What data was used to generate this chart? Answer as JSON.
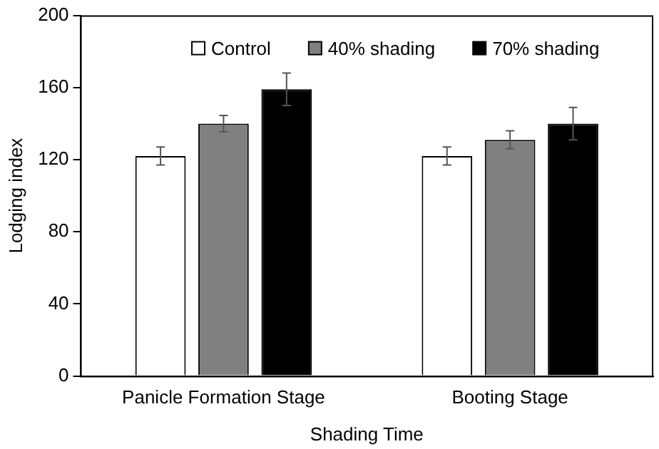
{
  "chart_data": {
    "type": "bar",
    "xlabel": "Shading Time",
    "ylabel": "Lodging index",
    "categories": [
      "Panicle Formation Stage",
      "Booting Stage"
    ],
    "series": [
      {
        "name": "Control",
        "color": "#ffffff",
        "values": [
          122,
          122
        ],
        "errors": [
          5,
          5
        ]
      },
      {
        "name": "40% shading",
        "color": "#808080",
        "values": [
          140,
          131
        ],
        "errors": [
          4.5,
          5
        ]
      },
      {
        "name": "70% shading",
        "color": "#000000",
        "values": [
          159,
          140
        ],
        "errors": [
          9,
          9
        ]
      }
    ],
    "ylim": [
      0,
      200
    ],
    "yticks": [
      0,
      40,
      80,
      120,
      160,
      200
    ],
    "grid": false,
    "legend": "top"
  }
}
